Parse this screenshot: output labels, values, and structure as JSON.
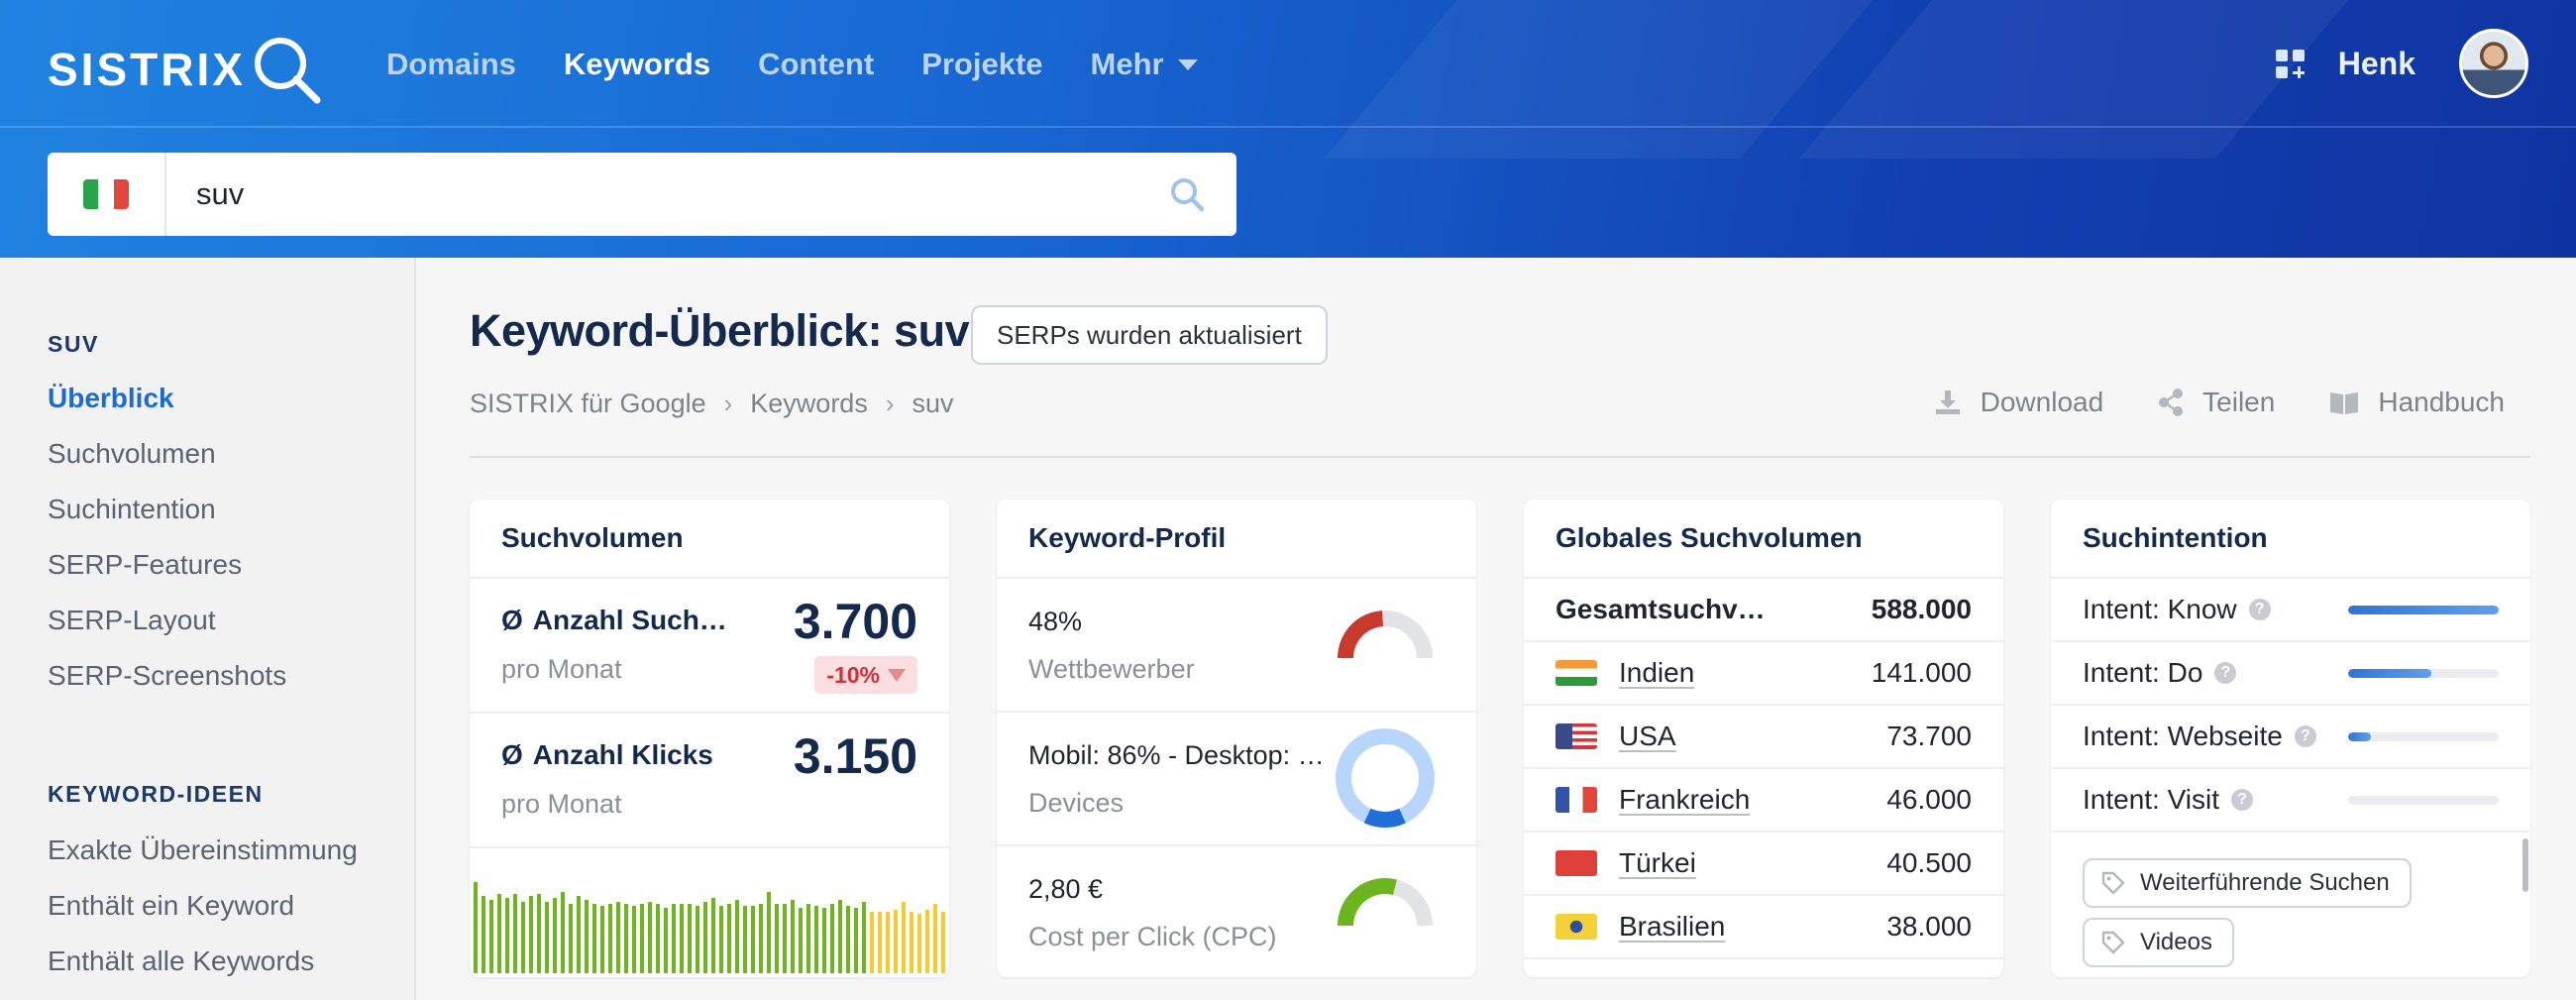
{
  "brand": {
    "logo_text": "SISTRIX"
  },
  "nav": [
    {
      "label": "Domains",
      "active": false
    },
    {
      "label": "Keywords",
      "active": true
    },
    {
      "label": "Content",
      "active": false
    },
    {
      "label": "Projekte",
      "active": false
    },
    {
      "label": "Mehr",
      "active": false
    }
  ],
  "user": {
    "name": "Henk"
  },
  "search": {
    "value": "suv",
    "country_flag": "italy"
  },
  "sidebar": {
    "section1_heading": "SUV",
    "section1_items": [
      "Überblick",
      "Suchvolumen",
      "Suchintention",
      "SERP-Features",
      "SERP-Layout",
      "SERP-Screenshots"
    ],
    "section2_heading": "KEYWORD-IDEEN",
    "section2_items": [
      "Exakte Übereinstimmung",
      "Enthält ein Keyword",
      "Enthält alle Keywords"
    ]
  },
  "page": {
    "title": "Keyword-Überblick: suv",
    "serp_badge": "SERPs wurden aktualisiert",
    "breadcrumb": [
      "SISTRIX für Google",
      "Keywords",
      "suv"
    ],
    "breadcrumb_sep": "›",
    "actions": {
      "download": "Download",
      "share": "Teilen",
      "manual": "Handbuch"
    }
  },
  "cards": {
    "suchvolumen": {
      "title": "Suchvolumen",
      "avg_symbol": "Ø",
      "searches_label": "Anzahl Such…",
      "searches_sub": "pro Monat",
      "searches_value": "3.700",
      "trend": "-10%",
      "clicks_label": "Anzahl Klicks",
      "clicks_sub": "pro Monat",
      "clicks_value": "3.150",
      "history_bars": [
        0.92,
        0.78,
        0.74,
        0.8,
        0.76,
        0.8,
        0.72,
        0.78,
        0.8,
        0.72,
        0.76,
        0.82,
        0.7,
        0.78,
        0.74,
        0.7,
        0.68,
        0.7,
        0.72,
        0.7,
        0.68,
        0.7,
        0.72,
        0.7,
        0.66,
        0.7,
        0.7,
        0.7,
        0.68,
        0.72,
        0.76,
        0.68,
        0.7,
        0.74,
        0.68,
        0.68,
        0.7,
        0.82,
        0.7,
        0.7,
        0.74,
        0.66,
        0.7,
        0.68,
        0.66,
        0.7,
        0.74,
        0.68,
        0.66,
        0.72,
        0.62,
        0.62,
        0.62,
        0.64,
        0.72,
        0.62,
        0.6,
        0.64,
        0.7,
        0.62
      ],
      "history_recent_color": "#f6cb2f",
      "history_color": "#6cb51f"
    },
    "profil": {
      "title": "Keyword-Profil",
      "competition_value": "48%",
      "competition_label": "Wettbewerber",
      "competition_fraction": 0.48,
      "devices_value": "Mobil: 86% - Desktop: …",
      "devices_label": "Devices",
      "mobile_fraction": 0.86,
      "cpc_value": "2,80 €",
      "cpc_label": "Cost per Click (CPC)",
      "cpc_fraction": 0.58
    },
    "global": {
      "title": "Globales Suchvolumen",
      "total_label": "Gesamtsuchv…",
      "total_value": "588.000",
      "countries": [
        {
          "name": "Indien",
          "value": "141.000",
          "flag": "india"
        },
        {
          "name": "USA",
          "value": "73.700",
          "flag": "usa"
        },
        {
          "name": "Frankreich",
          "value": "46.000",
          "flag": "france"
        },
        {
          "name": "Türkei",
          "value": "40.500",
          "flag": "turkey"
        },
        {
          "name": "Brasilien",
          "value": "38.000",
          "flag": "brazil"
        }
      ]
    },
    "intent": {
      "title": "Suchintention",
      "rows": [
        {
          "label": "Intent: Know",
          "level": 1.0
        },
        {
          "label": "Intent: Do",
          "level": 0.55
        },
        {
          "label": "Intent: Webseite",
          "level": 0.15
        },
        {
          "label": "Intent: Visit",
          "level": 0.0
        }
      ],
      "chips": [
        "Weiterführende Suchen",
        "Videos"
      ]
    }
  },
  "colors": {
    "accent": "#1d6bd0",
    "title": "#14294e",
    "danger": "#d0303a",
    "ring_red": "#c93a2e",
    "ring_blue": "#1f6fd6",
    "ring_blue_light": "#b8d6fb",
    "ring_green": "#6cb51f",
    "ring_gray": "#e1e3e6"
  }
}
